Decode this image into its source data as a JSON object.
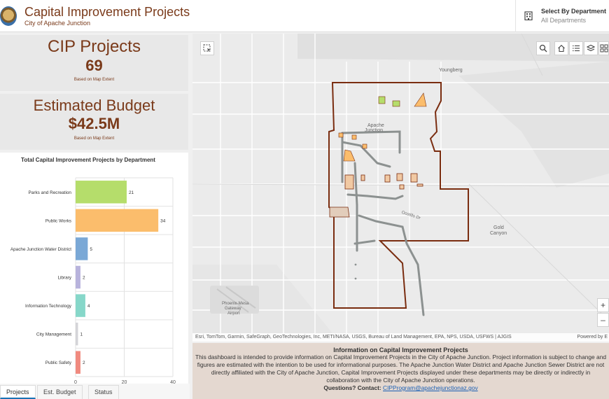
{
  "header": {
    "title": "Capital Improvement Projects",
    "subtitle": "City of Apache Junction"
  },
  "department_selector": {
    "title": "Select By Department",
    "value": "All Departments",
    "icon": "building-icon"
  },
  "cards": {
    "projects": {
      "title": "CIP Projects",
      "value": "69",
      "note": "Based on Map Extent"
    },
    "budget": {
      "title": "Estimated Budget",
      "value": "$42.5M",
      "note": "Based on Map Extent"
    }
  },
  "chart_data": {
    "type": "bar",
    "orientation": "horizontal",
    "title": "Total Capital Improvement Projects by Department",
    "categories": [
      "Parks and Recreation",
      "Public Works",
      "Apache Junction Water District",
      "Library",
      "Information Technology",
      "City Management",
      "Public Safety"
    ],
    "values": [
      21,
      34,
      5,
      2,
      4,
      1,
      2
    ],
    "colors": [
      "#b5dd6b",
      "#fbbd6c",
      "#7aa8d6",
      "#b8b3dc",
      "#86d7c9",
      "#d4d4d8",
      "#f08a7f"
    ],
    "xlim": [
      0,
      40
    ],
    "xticks": [
      0,
      20,
      40
    ],
    "grid": true
  },
  "tabs": [
    {
      "label": "Projects",
      "active": true
    },
    {
      "label": "Est. Budget",
      "active": false
    },
    {
      "label": "Status",
      "active": false
    }
  ],
  "map": {
    "labels": {
      "youngberg": "Youngberg",
      "apache_junction_1": "Apache",
      "apache_junction_2": "Junction",
      "gold_canyon_1": "Gold",
      "gold_canyon_2": "Canyon",
      "phoenix_mesa_1": "Phoenix-Mesa",
      "phoenix_mesa_2": "Gateway",
      "phoenix_mesa_3": "Airport",
      "road": "Ocotillo Dr"
    },
    "attribution": "Esri, TomTom, Garmin, SafeGraph, GeoTechnologies, Inc, METI/NASA, USGS, Bureau of Land Management, EPA, NPS, USDA, USFWS | AJGIS",
    "powered_by": "Powered by E",
    "tools": [
      "select-icon",
      "search-icon",
      "home-icon",
      "list-icon",
      "layers-icon",
      "basemap-icon"
    ],
    "zoom_in": "+",
    "zoom_out": "–"
  },
  "info": {
    "title": "Information on Capital Improvement Projects",
    "body": "This dashboard is intended to provide information on Capital Improvement Projects in the City of Apache Junction.  Project information is subject to change and figures are estimated with the intention to be used for informational purposes.  The Apache Junction Water District and Apache Junction Sewer District are not directly affiliated with the City of Apache Junction, Capital Improvement Projects displayed under these departments may be directly or indirectly in collaboration with the City of Apache Junction operations.",
    "contact_label": "Questions? Contact:",
    "contact_email": "CIPProgram@apachejunctionaz.gov"
  }
}
